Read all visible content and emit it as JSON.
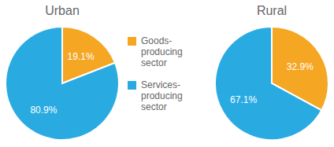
{
  "chart_data": [
    {
      "type": "pie",
      "title": "Urban",
      "categories": [
        "Goods-\nproducing\nsector",
        "Services-\nproducing\nsector"
      ],
      "values": [
        19.1,
        80.9
      ],
      "value_labels": [
        "19.1%",
        "80.9%"
      ],
      "colors": [
        "#F5A623",
        "#29ABE2"
      ],
      "data_labels": true,
      "legend": "right"
    },
    {
      "type": "pie",
      "title": "Rural",
      "categories": [
        "Goods-\nproducing\nsector",
        "Services-\nproducing\nsector"
      ],
      "values": [
        32.9,
        67.1
      ],
      "value_labels": [
        "32.9%",
        "67.1%"
      ],
      "colors": [
        "#F5A623",
        "#29ABE2"
      ],
      "data_labels": true
    }
  ]
}
